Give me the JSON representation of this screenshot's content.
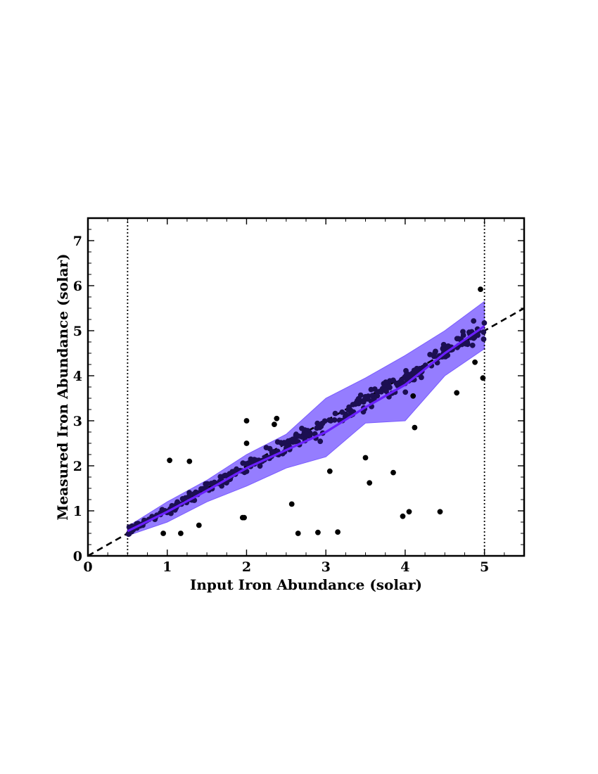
{
  "chart_data": {
    "type": "scatter",
    "title": "",
    "xlabel": "Input Iron Abundance (solar)",
    "ylabel": "Measured Iron Abundance (solar)",
    "xlim": [
      0,
      5.5
    ],
    "ylim": [
      0,
      7.5
    ],
    "xticks": [
      "0",
      "1",
      "2",
      "3",
      "4",
      "5"
    ],
    "yticks": [
      "0",
      "1",
      "2",
      "3",
      "4",
      "5",
      "6",
      "7"
    ],
    "grid": false,
    "legend": "none",
    "colors": {
      "points": "#000000",
      "median_line": "#6a1fff",
      "band": "#7a5cff",
      "identity_line": "#000000"
    },
    "reference_lines": {
      "identity": {
        "style": "dashed",
        "slope": 1,
        "intercept": 0
      },
      "vertical_dotted_x": [
        0.5,
        5.0
      ]
    },
    "median_line": {
      "x": [
        0.5,
        1.0,
        1.5,
        2.0,
        2.5,
        3.0,
        3.5,
        4.0,
        4.5,
        5.0
      ],
      "y": [
        0.55,
        0.98,
        1.45,
        1.95,
        2.35,
        2.75,
        3.3,
        3.8,
        4.5,
        5.1
      ]
    },
    "band": {
      "x": [
        0.5,
        1.0,
        1.5,
        2.0,
        2.5,
        3.0,
        3.5,
        4.0,
        4.5,
        5.0
      ],
      "upper": [
        0.65,
        1.2,
        1.68,
        2.25,
        2.7,
        3.5,
        3.95,
        4.45,
        5.0,
        5.65
      ],
      "lower": [
        0.45,
        0.75,
        1.2,
        1.55,
        1.95,
        2.2,
        2.95,
        3.0,
        4.0,
        4.6
      ]
    },
    "outliers": {
      "x": [
        1.03,
        1.17,
        1.28,
        1.4,
        1.97,
        2.0,
        2.38,
        2.57,
        2.65,
        2.9,
        3.05,
        3.15,
        3.5,
        3.55,
        3.85,
        3.97,
        4.05,
        4.12,
        4.44,
        4.65,
        4.88,
        4.95,
        4.98,
        2.0,
        1.95,
        2.35,
        0.95,
        4.1
      ],
      "y": [
        2.12,
        0.5,
        2.1,
        0.68,
        0.85,
        3.0,
        3.05,
        1.15,
        0.5,
        0.52,
        1.88,
        0.53,
        2.18,
        1.62,
        1.85,
        0.88,
        0.98,
        2.85,
        0.98,
        3.62,
        4.3,
        5.92,
        3.95,
        2.5,
        0.85,
        2.92,
        0.5,
        3.55
      ]
    }
  }
}
